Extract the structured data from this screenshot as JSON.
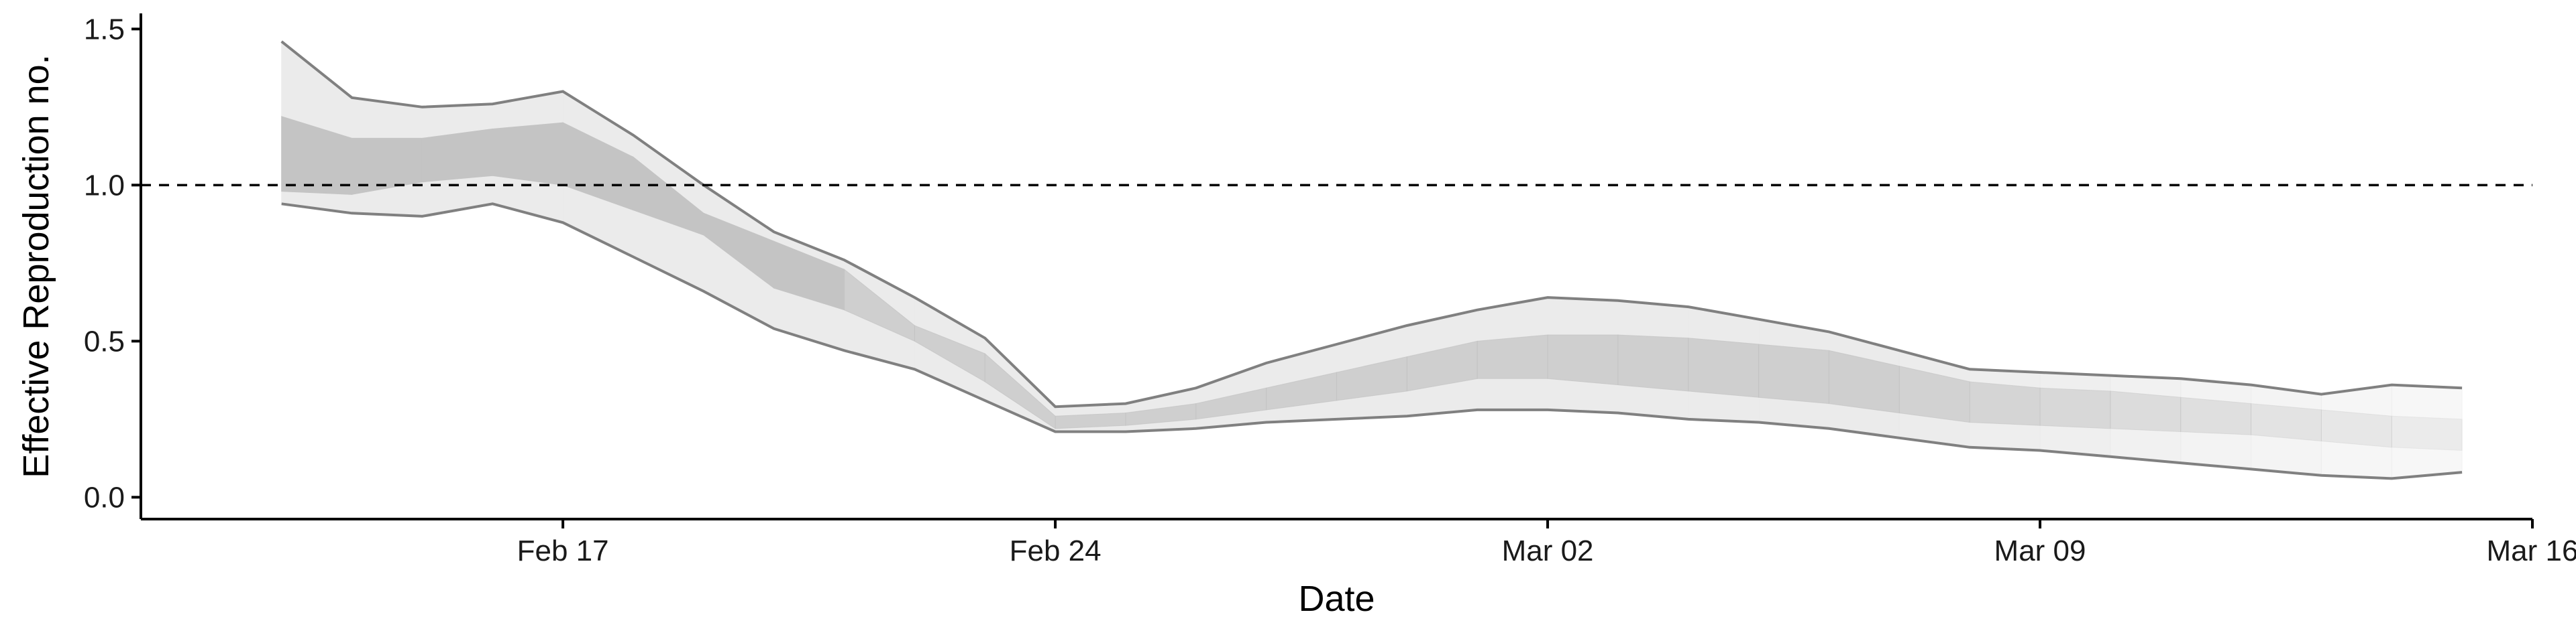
{
  "chart_data": {
    "type": "area",
    "title": "",
    "xlabel": "Date",
    "ylabel": "Effective Reproduction no.",
    "x_ticks": [
      "Feb 17",
      "Feb 24",
      "Mar 02",
      "Mar 09",
      "Mar 16"
    ],
    "y_ticks": [
      "0.0",
      "0.5",
      "1.0",
      "1.5"
    ],
    "ylim": [
      -0.07,
      1.55
    ],
    "xlim": [
      "2020-02-11",
      "2020-03-16"
    ],
    "grid": false,
    "legend": "none",
    "reference_line": {
      "y": 1.0,
      "style": "dashed"
    },
    "colors": {
      "outer_band": "#ebebeb",
      "inner_band": "#c4c4c4",
      "band_edge": "#808080",
      "reference": "#000000"
    },
    "series": [
      {
        "x": [
          "2020-02-13",
          "2020-02-14",
          "2020-02-15",
          "2020-02-16",
          "2020-02-17",
          "2020-02-18",
          "2020-02-19",
          "2020-02-20",
          "2020-02-21",
          "2020-02-22",
          "2020-02-23",
          "2020-02-24",
          "2020-02-25",
          "2020-02-26",
          "2020-02-27",
          "2020-02-28",
          "2020-02-29",
          "2020-03-01",
          "2020-03-02",
          "2020-03-03",
          "2020-03-04",
          "2020-03-05",
          "2020-03-06",
          "2020-03-07",
          "2020-03-08",
          "2020-03-09",
          "2020-03-10",
          "2020-03-11",
          "2020-03-12",
          "2020-03-13",
          "2020-03-14",
          "2020-03-15"
        ],
        "upper_90": [
          1.46,
          1.28,
          1.25,
          1.26,
          1.3,
          1.16,
          1.0,
          0.85,
          0.76,
          0.64,
          0.51,
          0.29,
          0.3,
          0.35,
          0.43,
          0.49,
          0.55,
          0.6,
          0.64,
          0.63,
          0.61,
          0.57,
          0.53,
          0.47,
          0.41,
          0.4,
          0.39,
          0.38,
          0.36,
          0.33,
          0.36,
          0.35
        ],
        "upper_50": [
          1.22,
          1.15,
          1.15,
          1.18,
          1.2,
          1.09,
          0.91,
          0.82,
          0.73,
          0.55,
          0.46,
          0.26,
          0.27,
          0.3,
          0.35,
          0.4,
          0.45,
          0.5,
          0.52,
          0.52,
          0.51,
          0.49,
          0.47,
          0.42,
          0.37,
          0.35,
          0.34,
          0.32,
          0.3,
          0.28,
          0.26,
          0.25
        ],
        "lower_50": [
          0.98,
          0.97,
          1.01,
          1.03,
          1.0,
          0.92,
          0.84,
          0.67,
          0.6,
          0.5,
          0.37,
          0.22,
          0.23,
          0.25,
          0.28,
          0.31,
          0.34,
          0.38,
          0.38,
          0.36,
          0.34,
          0.32,
          0.3,
          0.27,
          0.24,
          0.23,
          0.22,
          0.21,
          0.2,
          0.18,
          0.16,
          0.15
        ],
        "lower_90": [
          0.94,
          0.91,
          0.9,
          0.94,
          0.88,
          0.77,
          0.66,
          0.54,
          0.47,
          0.41,
          0.31,
          0.21,
          0.21,
          0.22,
          0.24,
          0.25,
          0.26,
          0.28,
          0.28,
          0.27,
          0.25,
          0.24,
          0.22,
          0.19,
          0.16,
          0.15,
          0.13,
          0.11,
          0.09,
          0.07,
          0.06,
          0.08
        ]
      }
    ]
  }
}
